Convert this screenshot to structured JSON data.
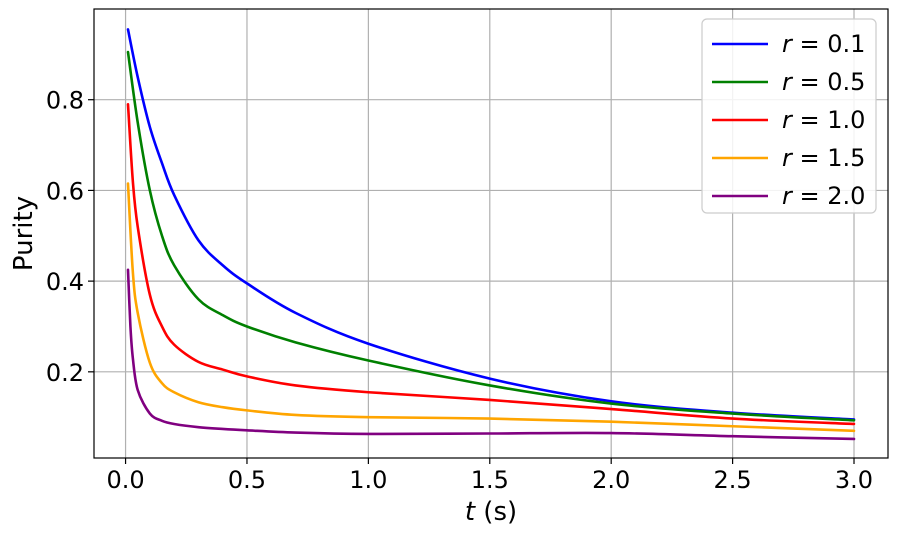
{
  "chart_data": {
    "type": "line",
    "xlabel_var": "t",
    "xlabel_unit": " (s)",
    "ylabel": "Purity",
    "xlim": [
      -0.13,
      3.14
    ],
    "ylim": [
      0.01,
      1.0
    ],
    "xticks": [
      0.0,
      0.5,
      1.0,
      1.5,
      2.0,
      2.5,
      3.0
    ],
    "xtick_labels": [
      "0.0",
      "0.5",
      "1.0",
      "1.5",
      "2.0",
      "2.5",
      "3.0"
    ],
    "yticks": [
      0.2,
      0.4,
      0.6,
      0.8
    ],
    "ytick_labels": [
      "0.2",
      "0.4",
      "0.6",
      "0.8"
    ],
    "grid": true,
    "legend_position": "top-right",
    "series": [
      {
        "name": "r = 0.1",
        "name_var": "r",
        "name_value": " = 0.1",
        "color": "#0000ff",
        "x": [
          0.01,
          0.05,
          0.1,
          0.15,
          0.2,
          0.3,
          0.4,
          0.5,
          0.7,
          1.0,
          1.5,
          2.0,
          2.5,
          3.0
        ],
        "y": [
          0.955,
          0.85,
          0.74,
          0.66,
          0.59,
          0.49,
          0.435,
          0.395,
          0.33,
          0.262,
          0.185,
          0.135,
          0.11,
          0.095
        ]
      },
      {
        "name": "r = 0.5",
        "name_var": "r",
        "name_value": " = 0.5",
        "color": "#008000",
        "x": [
          0.01,
          0.05,
          0.1,
          0.15,
          0.2,
          0.3,
          0.4,
          0.5,
          0.7,
          1.0,
          1.5,
          2.0,
          2.5,
          3.0
        ],
        "y": [
          0.905,
          0.75,
          0.6,
          0.5,
          0.435,
          0.36,
          0.325,
          0.3,
          0.265,
          0.225,
          0.17,
          0.13,
          0.108,
          0.093
        ]
      },
      {
        "name": "r = 1.0",
        "name_var": "r",
        "name_value": " = 1.0",
        "color": "#ff0000",
        "x": [
          0.01,
          0.03,
          0.05,
          0.1,
          0.15,
          0.2,
          0.3,
          0.4,
          0.5,
          0.7,
          1.0,
          1.5,
          2.0,
          2.5,
          3.0
        ],
        "y": [
          0.79,
          0.62,
          0.52,
          0.37,
          0.3,
          0.26,
          0.222,
          0.205,
          0.19,
          0.17,
          0.155,
          0.138,
          0.118,
          0.097,
          0.085
        ]
      },
      {
        "name": "r = 1.5",
        "name_var": "r",
        "name_value": " = 1.5",
        "color": "#ffa500",
        "x": [
          0.01,
          0.03,
          0.05,
          0.1,
          0.15,
          0.2,
          0.3,
          0.4,
          0.5,
          0.7,
          1.0,
          1.5,
          2.0,
          2.5,
          3.0
        ],
        "y": [
          0.615,
          0.42,
          0.33,
          0.22,
          0.175,
          0.155,
          0.133,
          0.122,
          0.115,
          0.105,
          0.1,
          0.097,
          0.09,
          0.08,
          0.07
        ]
      },
      {
        "name": "r = 2.0",
        "name_var": "r",
        "name_value": " = 2.0",
        "color": "#800080",
        "x": [
          0.01,
          0.02,
          0.03,
          0.05,
          0.1,
          0.15,
          0.2,
          0.3,
          0.4,
          0.5,
          0.7,
          1.0,
          1.5,
          2.0,
          2.5,
          3.0
        ],
        "y": [
          0.425,
          0.3,
          0.23,
          0.16,
          0.108,
          0.092,
          0.085,
          0.078,
          0.074,
          0.071,
          0.066,
          0.063,
          0.064,
          0.065,
          0.058,
          0.052
        ]
      }
    ]
  }
}
